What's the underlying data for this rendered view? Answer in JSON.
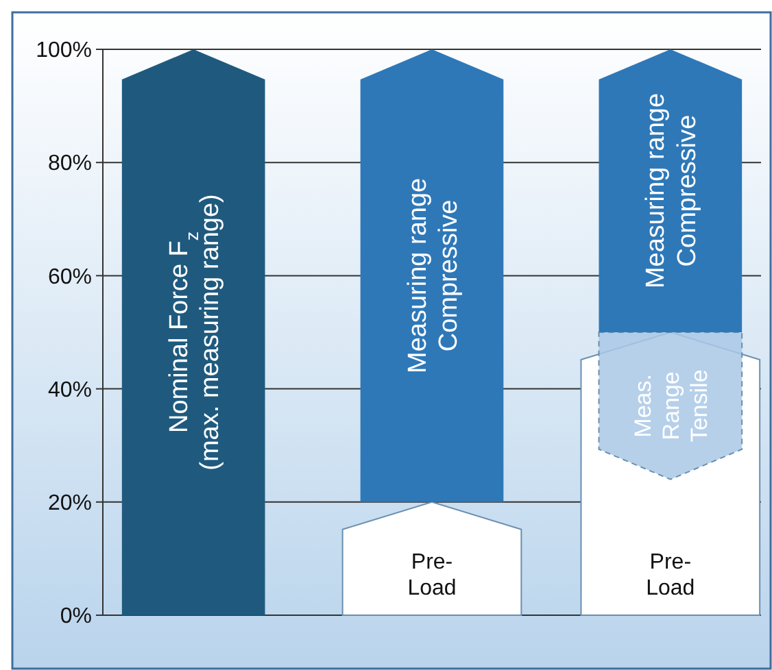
{
  "chart_data": {
    "type": "bar",
    "categories": [
      null,
      null,
      null
    ],
    "ylim": [
      0,
      100
    ],
    "yticks": [
      {
        "value": 0,
        "label": "0%"
      },
      {
        "value": 20,
        "label": "20%"
      },
      {
        "value": 40,
        "label": "40%"
      },
      {
        "value": 60,
        "label": "60%"
      },
      {
        "value": 80,
        "label": "80%"
      },
      {
        "value": 100,
        "label": "100%"
      }
    ],
    "grid": "y",
    "series": [
      {
        "name": "Nominal Force F$_{z}$\n(max. measuring range)",
        "color": "#1f5a7e",
        "values": [
          100,
          null,
          null
        ],
        "base": [
          0,
          null,
          null
        ]
      },
      {
        "name": "Pre-\nLoad",
        "color": "#ffffff",
        "values": [
          null,
          20,
          50
        ],
        "base": [
          null,
          0,
          0
        ]
      },
      {
        "name": "Meas.\nRange\nTensile",
        "color": "#a9c8e6",
        "values": [
          null,
          null,
          26
        ],
        "base": [
          null,
          null,
          24
        ]
      },
      {
        "name": "Measuring range\nCompressive",
        "color": "#2e78b8",
        "values": [
          null,
          80,
          50
        ],
        "base": [
          null,
          20,
          50
        ]
      }
    ]
  }
}
